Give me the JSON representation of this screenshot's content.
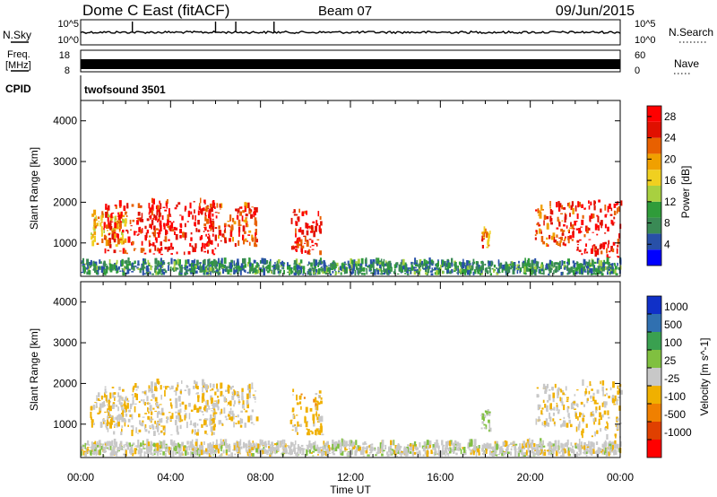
{
  "header": {
    "title": "Dome C East (fitACF)",
    "beam": "Beam 07",
    "date": "09/Jun/2015"
  },
  "aux_panels": {
    "nsky": {
      "label": "N.Sky",
      "ticks": [
        "10^5",
        "10^0"
      ]
    },
    "nsearch": {
      "label": "N.Search",
      "ticks": [
        "10^5",
        "10^0"
      ]
    },
    "freq": {
      "label_line1": "Freq.",
      "label_line2": "[MHz]",
      "ticks": [
        "18",
        "8"
      ]
    },
    "nave": {
      "label": "Nave",
      "ticks": [
        "60",
        "0"
      ]
    },
    "cpid": {
      "label": "CPID",
      "value": "twofsound 3501"
    }
  },
  "colors": {
    "power_scale": [
      "#0000ff",
      "#2850a8",
      "#3a8a55",
      "#2f9c3a",
      "#a8d040",
      "#f0d020",
      "#f0a000",
      "#e86000",
      "#e01000",
      "#ff0000"
    ],
    "velocity_scale": [
      "#1030c8",
      "#3070b0",
      "#3aa050",
      "#80c040",
      "#c8c8c8",
      "#f0b000",
      "#f08000",
      "#e04000",
      "#ff0000"
    ]
  },
  "chart_data": [
    {
      "type": "heatmap",
      "name": "power-panel",
      "ylabel": "Slant Range [km]",
      "ylim": [
        180,
        4500
      ],
      "yticks": [
        "1000",
        "2000",
        "3000",
        "4000"
      ],
      "xlim": [
        0,
        24
      ],
      "colorbar": {
        "label": "Power [dB]",
        "ticks": [
          "4",
          "8",
          "12",
          "16",
          "20",
          "24",
          "28"
        ],
        "range": [
          0,
          30
        ]
      },
      "echo_regions": [
        {
          "t_start": 0.4,
          "t_end": 2.0,
          "r_low": 900,
          "r_high": 1700,
          "power": 18
        },
        {
          "t_start": 1.0,
          "t_end": 3.6,
          "r_low": 700,
          "r_high": 1900,
          "power": 26
        },
        {
          "t_start": 3.0,
          "t_end": 6.0,
          "r_low": 700,
          "r_high": 2000,
          "power": 28
        },
        {
          "t_start": 5.5,
          "t_end": 7.8,
          "r_low": 900,
          "r_high": 1900,
          "power": 24
        },
        {
          "t_start": 9.3,
          "t_end": 10.7,
          "r_low": 700,
          "r_high": 1800,
          "power": 26
        },
        {
          "t_start": 17.8,
          "t_end": 18.2,
          "r_low": 800,
          "r_high": 1300,
          "power": 20
        },
        {
          "t_start": 20.2,
          "t_end": 22.0,
          "r_low": 900,
          "r_high": 1900,
          "power": 24
        },
        {
          "t_start": 22.0,
          "t_end": 24.0,
          "r_low": 600,
          "r_high": 2000,
          "power": 28
        },
        {
          "t_start": 0.0,
          "t_end": 24.0,
          "r_low": 200,
          "r_high": 500,
          "power": 8
        }
      ]
    },
    {
      "type": "heatmap",
      "name": "velocity-panel",
      "ylabel": "Slant Range [km]",
      "xlabel": "Time UT",
      "ylim": [
        180,
        4500
      ],
      "yticks": [
        "1000",
        "2000",
        "3000",
        "4000"
      ],
      "xlim": [
        0,
        24
      ],
      "xticks": [
        "00:00",
        "04:00",
        "08:00",
        "12:00",
        "16:00",
        "20:00",
        "00:00"
      ],
      "colorbar": {
        "label": "Velocity [m s^-1]",
        "ticks": [
          "1000",
          "500",
          "100",
          "25",
          "-25",
          "-100",
          "-500",
          "-1000"
        ],
        "range": [
          -1000,
          1000
        ]
      },
      "echo_regions": [
        {
          "t_start": 0.4,
          "t_end": 2.0,
          "r_low": 900,
          "r_high": 1700,
          "velocity": -150
        },
        {
          "t_start": 1.0,
          "t_end": 3.6,
          "r_low": 700,
          "r_high": 1900,
          "velocity": -100
        },
        {
          "t_start": 3.0,
          "t_end": 6.0,
          "r_low": 700,
          "r_high": 2000,
          "velocity": -100
        },
        {
          "t_start": 5.5,
          "t_end": 7.8,
          "r_low": 900,
          "r_high": 1900,
          "velocity": -80
        },
        {
          "t_start": 9.3,
          "t_end": 10.7,
          "r_low": 700,
          "r_high": 1800,
          "velocity": -200
        },
        {
          "t_start": 17.8,
          "t_end": 18.2,
          "r_low": 800,
          "r_high": 1300,
          "velocity": 100
        },
        {
          "t_start": 20.2,
          "t_end": 22.0,
          "r_low": 900,
          "r_high": 1900,
          "velocity": -50
        },
        {
          "t_start": 22.0,
          "t_end": 24.0,
          "r_low": 600,
          "r_high": 2000,
          "velocity": -120
        },
        {
          "t_start": 0.0,
          "t_end": 24.0,
          "r_low": 200,
          "r_high": 500,
          "velocity": 0
        }
      ]
    }
  ]
}
